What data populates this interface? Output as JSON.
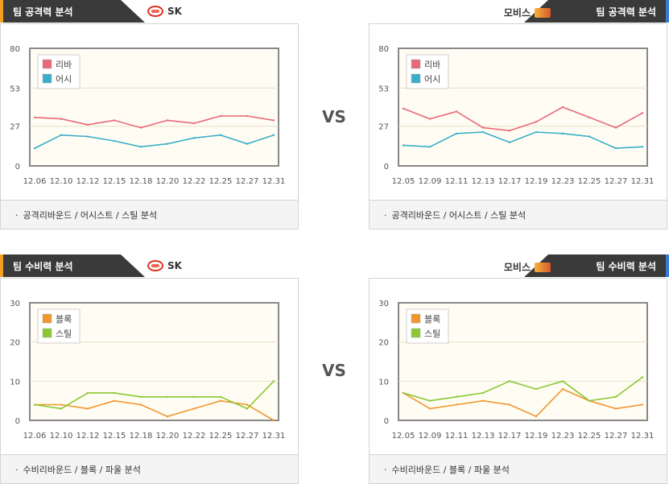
{
  "vs_label": "VS",
  "panels": [
    {
      "side": "left",
      "title": "팀 공격력 분석",
      "accent": "#f0a020",
      "team": "SK",
      "team_icon": "sk-logo-icon",
      "footer": "공격리바운드 / 어시스트 / 스틸 분석",
      "footer_bullet": "·",
      "chart_data": {
        "type": "line",
        "categories": [
          "12.06",
          "12.10",
          "12.12",
          "12.15",
          "12.18",
          "12.20",
          "12.22",
          "12.25",
          "12.27",
          "12.31"
        ],
        "ylim": [
          0,
          80
        ],
        "yticks": [
          0,
          27,
          53,
          80
        ],
        "series": [
          {
            "name": "리바",
            "color": "#e8687a",
            "values": [
              33,
              32,
              28,
              31,
              26,
              31,
              29,
              34,
              34,
              31
            ]
          },
          {
            "name": "어시",
            "color": "#3aaec8",
            "values": [
              12,
              21,
              20,
              17,
              13,
              15,
              19,
              21,
              15,
              21
            ]
          }
        ]
      }
    },
    {
      "side": "right",
      "title": "팀 공격력 분석",
      "accent": "#3a7ad8",
      "team": "모비스",
      "team_icon": "mobis-logo-icon",
      "footer": "공격리바운드 / 어시스트 / 스틸 분석",
      "footer_bullet": "·",
      "chart_data": {
        "type": "line",
        "categories": [
          "12.05",
          "12.09",
          "12.11",
          "12.13",
          "12.17",
          "12.19",
          "12.23",
          "12.25",
          "12.27",
          "12.31"
        ],
        "ylim": [
          0,
          80
        ],
        "yticks": [
          0,
          27,
          53,
          80
        ],
        "series": [
          {
            "name": "리바",
            "color": "#e8687a",
            "values": [
              39,
              32,
              37,
              26,
              24,
              30,
              40,
              33,
              26,
              36
            ]
          },
          {
            "name": "어시",
            "color": "#3aaec8",
            "values": [
              14,
              13,
              22,
              23,
              16,
              23,
              22,
              20,
              12,
              13
            ]
          }
        ]
      }
    },
    {
      "side": "left",
      "title": "팀 수비력 분석",
      "accent": "#f0a020",
      "team": "SK",
      "team_icon": "sk-logo-icon",
      "footer": "수비리바운드 / 블록 / 파울 분석",
      "footer_bullet": "·",
      "chart_data": {
        "type": "line",
        "categories": [
          "12.06",
          "12.10",
          "12.12",
          "12.15",
          "12.18",
          "12.20",
          "12.22",
          "12.25",
          "12.27",
          "12.31"
        ],
        "ylim": [
          0,
          30
        ],
        "yticks": [
          0,
          10,
          20,
          30
        ],
        "series": [
          {
            "name": "블록",
            "color": "#f0962e",
            "values": [
              4,
              4,
              3,
              5,
              4,
              1,
              3,
              5,
              4,
              0
            ]
          },
          {
            "name": "스틸",
            "color": "#8ac832",
            "values": [
              4,
              3,
              7,
              7,
              6,
              6,
              6,
              6,
              3,
              10
            ]
          }
        ]
      }
    },
    {
      "side": "right",
      "title": "팀 수비력 분석",
      "accent": "#3a7ad8",
      "team": "모비스",
      "team_icon": "mobis-logo-icon",
      "footer": "수비리바운드 / 블록 / 파울 분석",
      "footer_bullet": "·",
      "chart_data": {
        "type": "line",
        "categories": [
          "12.05",
          "12.09",
          "12.11",
          "12.13",
          "12.17",
          "12.19",
          "12.23",
          "12.25",
          "12.27",
          "12.31"
        ],
        "ylim": [
          0,
          30
        ],
        "yticks": [
          0,
          10,
          20,
          30
        ],
        "series": [
          {
            "name": "블록",
            "color": "#f0962e",
            "values": [
              7,
              3,
              4,
              5,
              4,
              1,
              8,
              5,
              3,
              4
            ]
          },
          {
            "name": "스틸",
            "color": "#8ac832",
            "values": [
              7,
              5,
              6,
              7,
              10,
              8,
              10,
              5,
              6,
              11
            ]
          }
        ]
      }
    }
  ]
}
